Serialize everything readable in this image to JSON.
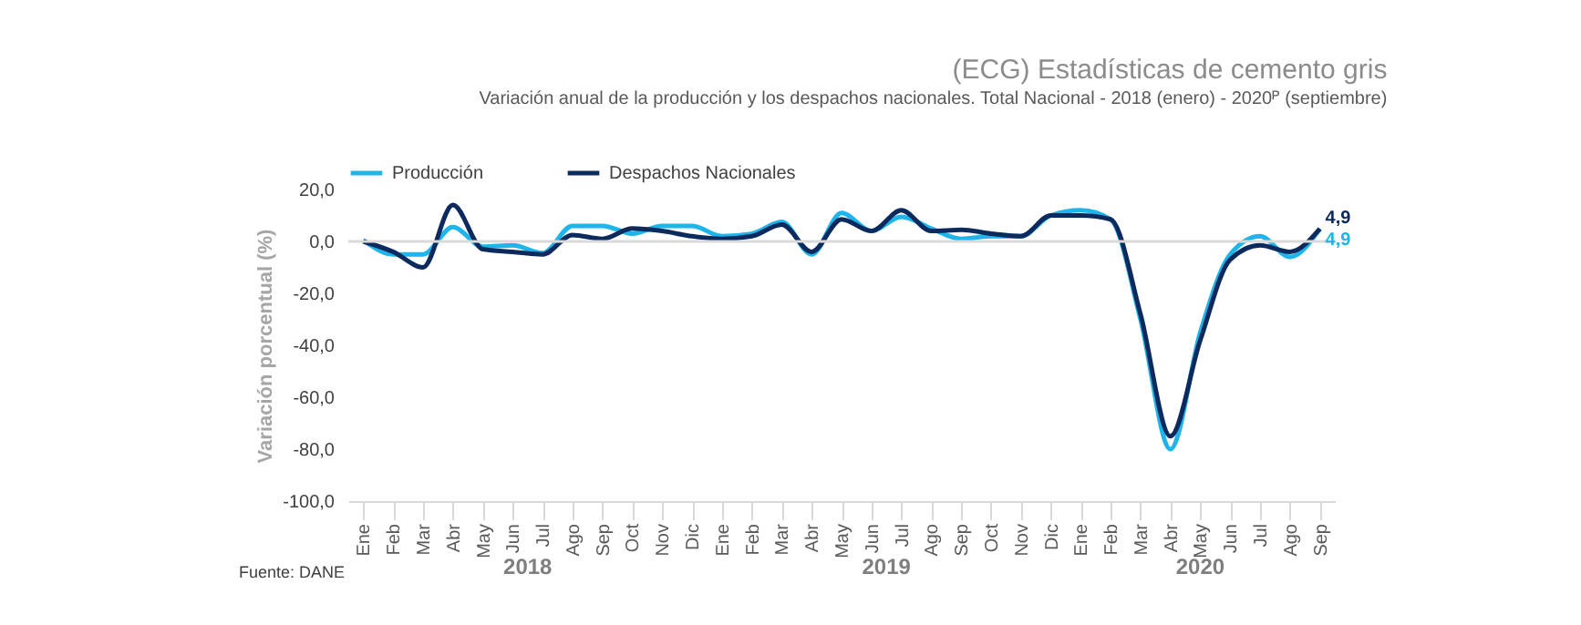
{
  "chart_data": {
    "type": "line",
    "title": "(ECG) Estadísticas de cemento gris",
    "subtitle": "Variación anual de la producción y los despachos nacionales. Total Nacional - 2018 (enero) - 2020ᴾ (septiembre)",
    "ylabel": "Variación porcentual (%)",
    "categories": [
      "Ene",
      "Feb",
      "Mar",
      "Abr",
      "May",
      "Jun",
      "Jul",
      "Ago",
      "Sep",
      "Oct",
      "Nov",
      "Dic",
      "Ene",
      "Feb",
      "Mar",
      "Abr",
      "May",
      "Jun",
      "Jul",
      "Ago",
      "Sep",
      "Oct",
      "Nov",
      "Dic",
      "Ene",
      "Feb",
      "Mar",
      "Abr",
      "May",
      "Jun",
      "Jul",
      "Ago",
      "Sep"
    ],
    "series": [
      {
        "name": "Producción",
        "color": "#1fb4ea",
        "values": [
          0.5,
          -5,
          -5,
          5.5,
          -2,
          -1.5,
          -4.5,
          6,
          6,
          3,
          6,
          6,
          2,
          3,
          7.5,
          -5,
          11,
          4,
          9.5,
          5,
          1,
          2,
          2,
          10,
          12,
          8.5,
          -30,
          -80,
          -35,
          -5,
          2,
          -6,
          4.9
        ],
        "value_labels": [
          null,
          null,
          null,
          null,
          null,
          null,
          null,
          null,
          null,
          null,
          null,
          null,
          null,
          null,
          null,
          null,
          null,
          null,
          null,
          null,
          null,
          null,
          null,
          null,
          null,
          null,
          null,
          null,
          null,
          null,
          null,
          null,
          "4,9"
        ]
      },
      {
        "name": "Despachos Nacionales",
        "color": "#0d2a5e",
        "values": [
          0,
          -4,
          -10,
          14,
          -3,
          -4,
          -5,
          2.5,
          1,
          5,
          4,
          2,
          1,
          2,
          6.5,
          -4,
          8.5,
          4,
          12,
          4,
          4.5,
          3,
          2,
          10,
          10,
          8.5,
          -28,
          -75,
          -38,
          -7,
          -1.5,
          -4,
          4.9
        ],
        "value_labels": [
          null,
          null,
          null,
          null,
          null,
          null,
          null,
          null,
          null,
          null,
          null,
          null,
          null,
          null,
          null,
          null,
          null,
          null,
          null,
          null,
          null,
          null,
          null,
          null,
          null,
          null,
          null,
          null,
          null,
          null,
          null,
          null,
          "4,9"
        ]
      }
    ],
    "ylim": [
      -100,
      20
    ],
    "yticks": [
      {
        "value": -100,
        "label": "-100,0"
      },
      {
        "value": -80,
        "label": "-80,0"
      },
      {
        "value": -60,
        "label": "-60,0"
      },
      {
        "value": -40,
        "label": "-40,0"
      },
      {
        "value": -20,
        "label": "-20,0"
      },
      {
        "value": 0,
        "label": "0,0"
      },
      {
        "value": 20,
        "label": "20,0"
      }
    ],
    "ref_lines": [
      {
        "axis": "y",
        "value": 0,
        "color": "#d9d9d9"
      }
    ],
    "annotations": [
      "2018",
      "2019",
      "2020",
      "Fuente: DANE"
    ],
    "legend": "top",
    "grid": false,
    "marker": "none",
    "line_style": "solid"
  }
}
